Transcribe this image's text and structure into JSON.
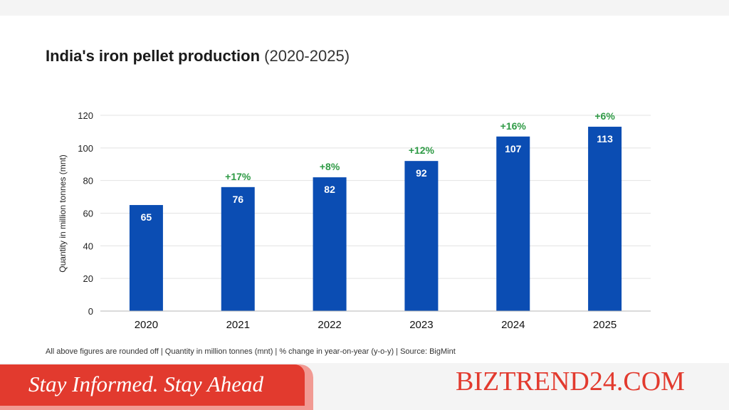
{
  "colors": {
    "bar": "#0b4db3",
    "bar_label": "#ffffff",
    "change_label": "#2e9a45",
    "gridline": "#e3e3e3",
    "axis": "#b5b5b5",
    "brand": "#e23a2e"
  },
  "header": {
    "title_main": "India's iron pellet production",
    "title_sub": "(2020-2025)"
  },
  "chart_data": {
    "type": "bar",
    "title": "India's iron pellet production (2020-2025)",
    "xlabel": "",
    "ylabel": "Quantity in million tonnes (mnt)",
    "categories": [
      "2020",
      "2021",
      "2022",
      "2023",
      "2024",
      "2025"
    ],
    "values": [
      65,
      76,
      82,
      92,
      107,
      113
    ],
    "value_labels": [
      "65",
      "76",
      "82",
      "92",
      "107",
      "113"
    ],
    "change_labels": [
      "",
      "+17%",
      "+8%",
      "+12%",
      "+16%",
      "+6%"
    ],
    "yticks": [
      0,
      20,
      40,
      60,
      80,
      100,
      120
    ],
    "ylim": [
      0,
      120
    ],
    "grid": true,
    "legend": "none"
  },
  "footnote": "All above figures are rounded off | Quantity in million tonnes (mnt) | % change in year-on-year (y-o-y) | Source: BigMint",
  "banner": {
    "text": "Stay Informed. Stay Ahead"
  },
  "brand": {
    "text": "BIZTREND24.COM"
  }
}
